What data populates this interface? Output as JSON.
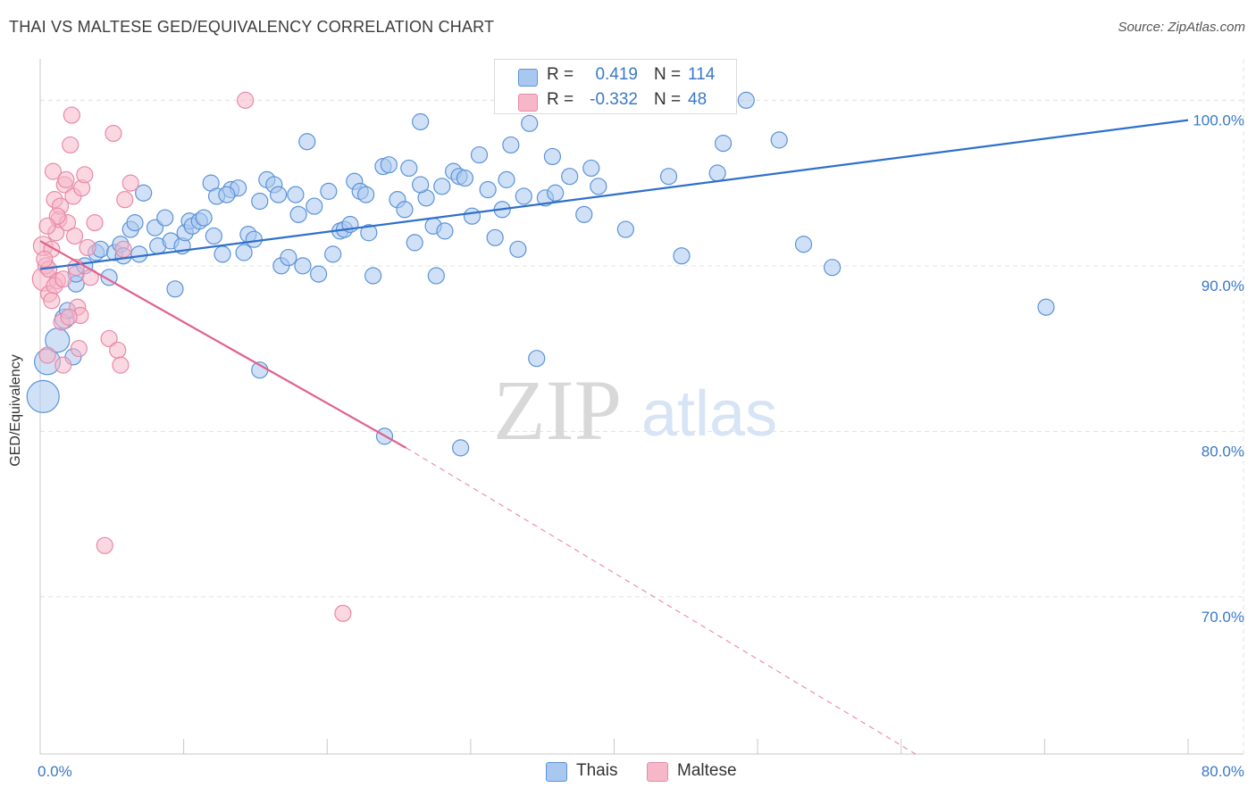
{
  "header": {
    "title": "THAI VS MALTESE GED/EQUIVALENCY CORRELATION CHART",
    "source": "Source: ZipAtlas.com"
  },
  "watermark": {
    "zip": "ZIP",
    "atlas": "atlas"
  },
  "colors": {
    "blue_fill": "#a9c8f0",
    "blue_stroke": "#5b93d8",
    "blue_line": "#2f6fcb",
    "pink_fill": "#f6b7c9",
    "pink_stroke": "#e88aa8",
    "pink_line": "#e0628f",
    "grid": "#e3e3e3",
    "tick_text": "#3a78c9"
  },
  "legend": {
    "rows": [
      {
        "r_label": "R =",
        "r_value": "0.419",
        "n_label": "N =",
        "n_value": "114",
        "color": "#a9c8f0",
        "border": "#5b93d8"
      },
      {
        "r_label": "R =",
        "r_value": "-0.332",
        "n_label": "N =",
        "n_value": "48",
        "color": "#f6b7c9",
        "border": "#e88aa8"
      }
    ]
  },
  "bottom_legend": {
    "items": [
      {
        "label": "Thais",
        "color": "#a9c8f0",
        "border": "#5b93d8"
      },
      {
        "label": "Maltese",
        "color": "#f6b7c9",
        "border": "#e88aa8"
      }
    ]
  },
  "chart_data": {
    "type": "scatter",
    "title": "THAI VS MALTESE GED/EQUIVALENCY CORRELATION CHART",
    "xlabel": "",
    "ylabel": "GED/Equivalency",
    "xlim": [
      0,
      80
    ],
    "ylim": [
      60.5,
      102.5
    ],
    "x_tick_labels": [
      {
        "value": 0,
        "label": "0.0%"
      },
      {
        "value": 80,
        "label": "80.0%"
      }
    ],
    "y_tick_labels": [
      {
        "value": 100,
        "label": "100.0%"
      },
      {
        "value": 90,
        "label": "90.0%"
      },
      {
        "value": 80,
        "label": "80.0%"
      },
      {
        "value": 70,
        "label": "70.0%"
      }
    ],
    "grid": true,
    "legend_position": "top-center",
    "series": [
      {
        "name": "Thais",
        "color": "#a9c8f0",
        "stroke": "#5b93d8",
        "trend": {
          "x0": 0,
          "y0": 89.8,
          "x1": 80,
          "y1": 98.8
        },
        "points": [
          [
            0.2,
            82.1,
            2.0
          ],
          [
            0.5,
            84.2,
            1.6
          ],
          [
            1.2,
            85.5,
            1.5
          ],
          [
            1.7,
            86.8,
            1.2
          ],
          [
            1.9,
            87.3,
            1.0
          ],
          [
            2.3,
            84.5,
            1.0
          ],
          [
            2.5,
            88.9,
            1.0
          ],
          [
            2.5,
            89.5,
            1.0
          ],
          [
            3.1,
            90.0,
            1.0
          ],
          [
            3.9,
            90.8,
            1.0
          ],
          [
            4.2,
            91.0,
            1.0
          ],
          [
            4.8,
            89.3,
            1.0
          ],
          [
            5.2,
            90.8,
            1.0
          ],
          [
            5.6,
            91.3,
            1.0
          ],
          [
            5.8,
            90.6,
            1.0
          ],
          [
            6.3,
            92.2,
            1.0
          ],
          [
            6.6,
            92.6,
            1.0
          ],
          [
            6.9,
            90.7,
            1.0
          ],
          [
            7.2,
            94.4,
            1.0
          ],
          [
            8.0,
            92.3,
            1.0
          ],
          [
            8.2,
            91.2,
            1.0
          ],
          [
            8.7,
            92.9,
            1.0
          ],
          [
            9.1,
            91.5,
            1.0
          ],
          [
            9.4,
            88.6,
            1.0
          ],
          [
            9.9,
            91.2,
            1.0
          ],
          [
            10.1,
            92.0,
            1.0
          ],
          [
            10.4,
            92.7,
            1.0
          ],
          [
            10.6,
            92.4,
            1.0
          ],
          [
            11.1,
            92.7,
            1.0
          ],
          [
            11.4,
            92.9,
            1.0
          ],
          [
            11.9,
            95.0,
            1.0
          ],
          [
            12.1,
            91.8,
            1.0
          ],
          [
            12.3,
            94.2,
            1.0
          ],
          [
            12.7,
            90.7,
            1.0
          ],
          [
            13.3,
            94.6,
            1.0
          ],
          [
            13.8,
            94.7,
            1.0
          ],
          [
            14.2,
            90.8,
            1.0
          ],
          [
            14.5,
            91.9,
            1.0
          ],
          [
            14.9,
            91.6,
            1.0
          ],
          [
            15.3,
            93.9,
            1.0
          ],
          [
            15.8,
            95.2,
            1.0
          ],
          [
            16.3,
            94.9,
            1.0
          ],
          [
            16.6,
            94.3,
            1.0
          ],
          [
            16.8,
            90.0,
            1.0
          ],
          [
            17.3,
            90.5,
            1.0
          ],
          [
            17.8,
            94.3,
            1.0
          ],
          [
            18.0,
            93.1,
            1.0
          ],
          [
            18.3,
            90.0,
            1.0
          ],
          [
            18.6,
            97.5,
            1.0
          ],
          [
            19.1,
            93.6,
            1.0
          ],
          [
            19.4,
            89.5,
            1.0
          ],
          [
            20.1,
            94.5,
            1.0
          ],
          [
            20.4,
            90.7,
            1.0
          ],
          [
            20.9,
            92.1,
            1.0
          ],
          [
            21.2,
            92.2,
            1.0
          ],
          [
            21.6,
            92.5,
            1.0
          ],
          [
            21.9,
            95.1,
            1.0
          ],
          [
            22.3,
            94.5,
            1.0
          ],
          [
            22.7,
            94.3,
            1.0
          ],
          [
            22.9,
            92.0,
            1.0
          ],
          [
            23.2,
            89.4,
            1.0
          ],
          [
            23.9,
            96.0,
            1.0
          ],
          [
            24.3,
            96.1,
            1.0
          ],
          [
            24.9,
            94.0,
            1.0
          ],
          [
            25.4,
            93.4,
            1.0
          ],
          [
            25.7,
            95.9,
            1.0
          ],
          [
            26.1,
            91.4,
            1.0
          ],
          [
            26.5,
            98.7,
            1.0
          ],
          [
            26.9,
            94.1,
            1.0
          ],
          [
            26.5,
            94.9,
            1.0
          ],
          [
            27.4,
            92.4,
            1.0
          ],
          [
            27.6,
            89.4,
            1.0
          ],
          [
            28.0,
            94.8,
            1.0
          ],
          [
            28.2,
            92.1,
            1.0
          ],
          [
            28.8,
            95.7,
            1.0
          ],
          [
            29.2,
            95.4,
            1.0
          ],
          [
            29.6,
            95.3,
            1.0
          ],
          [
            30.1,
            93.0,
            1.0
          ],
          [
            30.6,
            96.7,
            1.0
          ],
          [
            31.2,
            94.6,
            1.0
          ],
          [
            31.7,
            91.7,
            1.0
          ],
          [
            32.2,
            93.4,
            1.0
          ],
          [
            32.5,
            95.2,
            1.0
          ],
          [
            32.8,
            97.3,
            1.0
          ],
          [
            33.3,
            91.0,
            1.0
          ],
          [
            33.7,
            94.2,
            1.0
          ],
          [
            34.1,
            98.6,
            1.0
          ],
          [
            34.6,
            84.4,
            1.0
          ],
          [
            35.2,
            94.1,
            1.0
          ],
          [
            35.7,
            96.6,
            1.0
          ],
          [
            35.9,
            94.4,
            1.0
          ],
          [
            36.9,
            95.4,
            1.0
          ],
          [
            37.9,
            93.1,
            1.0
          ],
          [
            38.4,
            95.9,
            1.0
          ],
          [
            38.9,
            94.8,
            1.0
          ],
          [
            40.8,
            92.2,
            1.0
          ],
          [
            43.8,
            95.4,
            1.0
          ],
          [
            44.7,
            90.6,
            1.0
          ],
          [
            47.2,
            95.6,
            1.0
          ],
          [
            47.6,
            97.4,
            1.0
          ],
          [
            49.2,
            100.0,
            1.0
          ],
          [
            51.5,
            97.6,
            1.0
          ],
          [
            53.2,
            91.3,
            1.0
          ],
          [
            55.2,
            89.9,
            1.0
          ],
          [
            70.1,
            87.5,
            1.0
          ],
          [
            15.3,
            83.7,
            1.0
          ],
          [
            24.0,
            79.7,
            1.0
          ],
          [
            29.3,
            79.0,
            1.0
          ],
          [
            13.0,
            94.3,
            1.0
          ]
        ]
      },
      {
        "name": "Maltese",
        "color": "#f6b7c9",
        "stroke": "#e88aa8",
        "trend": {
          "x0": 0,
          "y0": 91.5,
          "x1": 25.5,
          "y1": 79.0
        },
        "trend_dashed": {
          "x0": 25.5,
          "y0": 79.0,
          "x1": 61.0,
          "y1": 60.5
        },
        "points": [
          [
            0.2,
            91.2,
            1.2
          ],
          [
            0.3,
            89.2,
            1.5
          ],
          [
            0.4,
            90.0,
            1.0
          ],
          [
            0.5,
            84.6,
            1.0
          ],
          [
            0.6,
            88.3,
            1.0
          ],
          [
            0.8,
            91.0,
            1.0
          ],
          [
            0.9,
            95.7,
            1.0
          ],
          [
            1.0,
            94.0,
            1.0
          ],
          [
            1.1,
            92.0,
            1.0
          ],
          [
            1.2,
            89.1,
            1.0
          ],
          [
            1.3,
            92.8,
            1.0
          ],
          [
            1.4,
            93.6,
            1.0
          ],
          [
            1.5,
            86.6,
            1.0
          ],
          [
            1.6,
            84.0,
            1.0
          ],
          [
            1.7,
            94.9,
            1.0
          ],
          [
            1.8,
            95.2,
            1.0
          ],
          [
            1.9,
            92.6,
            1.0
          ],
          [
            2.1,
            97.3,
            1.0
          ],
          [
            2.2,
            99.1,
            1.0
          ],
          [
            2.3,
            94.2,
            1.0
          ],
          [
            2.4,
            91.8,
            1.0
          ],
          [
            2.5,
            89.9,
            1.0
          ],
          [
            2.6,
            87.5,
            1.0
          ],
          [
            2.7,
            85.0,
            1.0
          ],
          [
            2.8,
            87.0,
            1.0
          ],
          [
            2.9,
            94.7,
            1.0
          ],
          [
            3.1,
            95.5,
            1.0
          ],
          [
            3.3,
            91.1,
            1.0
          ],
          [
            3.5,
            89.3,
            1.0
          ],
          [
            3.8,
            92.6,
            1.0
          ],
          [
            4.5,
            73.1,
            1.0
          ],
          [
            4.8,
            85.6,
            1.0
          ],
          [
            5.1,
            98.0,
            1.0
          ],
          [
            5.4,
            84.9,
            1.0
          ],
          [
            5.6,
            84.0,
            1.0
          ],
          [
            5.8,
            91.0,
            1.0
          ],
          [
            5.9,
            94.0,
            1.0
          ],
          [
            6.3,
            95.0,
            1.0
          ],
          [
            14.3,
            100.0,
            1.0
          ],
          [
            21.1,
            69.0,
            1.0
          ],
          [
            0.6,
            89.8,
            1.0
          ],
          [
            1.0,
            88.8,
            1.0
          ],
          [
            0.3,
            90.4,
            1.0
          ],
          [
            1.6,
            89.2,
            1.0
          ],
          [
            2.0,
            86.9,
            1.0
          ],
          [
            0.8,
            87.9,
            1.0
          ],
          [
            1.2,
            93.0,
            1.0
          ],
          [
            0.5,
            92.4,
            1.0
          ]
        ]
      }
    ]
  }
}
